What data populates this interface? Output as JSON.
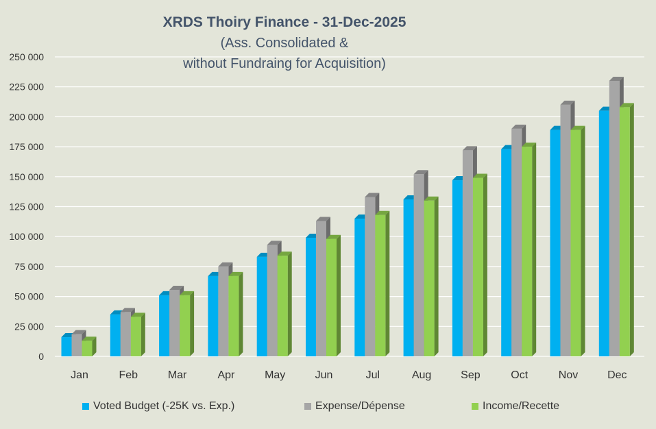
{
  "chart_data": {
    "type": "bar",
    "title": "XRDS Thoiry Finance - 31-Dec-2025",
    "subtitle_line1": "(Ass. Consolidated &",
    "subtitle_line2": "without Fundraing for Acquisition)",
    "categories": [
      "Jan",
      "Feb",
      "Mar",
      "Apr",
      "May",
      "Jun",
      "Jul",
      "Aug",
      "Sep",
      "Oct",
      "Nov",
      "Dec"
    ],
    "ylim": [
      0,
      250000
    ],
    "yticks": [
      0,
      25000,
      50000,
      75000,
      100000,
      125000,
      150000,
      175000,
      200000,
      225000,
      250000
    ],
    "ytick_labels": [
      "0",
      "25 000",
      "50 000",
      "75 000",
      "100 000",
      "125 000",
      "150 000",
      "175 000",
      "200 000",
      "225 000",
      "250 000"
    ],
    "grid": true,
    "legend_position": "bottom",
    "series": [
      {
        "name": "Voted Budget (-25K vs. Exp.)",
        "color": "#00b0f0",
        "values": [
          16000,
          35000,
          51000,
          67000,
          83000,
          99000,
          115000,
          131000,
          147000,
          173000,
          189000,
          205000
        ]
      },
      {
        "name": "Expense/Dépense",
        "color": "#a6a6a6",
        "values": [
          18500,
          37000,
          55500,
          75000,
          93000,
          113000,
          133000,
          152000,
          172000,
          190000,
          210000,
          230000
        ]
      },
      {
        "name": "Income/Recette",
        "color": "#92d050",
        "values": [
          13000,
          33000,
          51000,
          67000,
          84000,
          98000,
          118000,
          130000,
          149000,
          175000,
          189000,
          208000
        ]
      }
    ]
  }
}
